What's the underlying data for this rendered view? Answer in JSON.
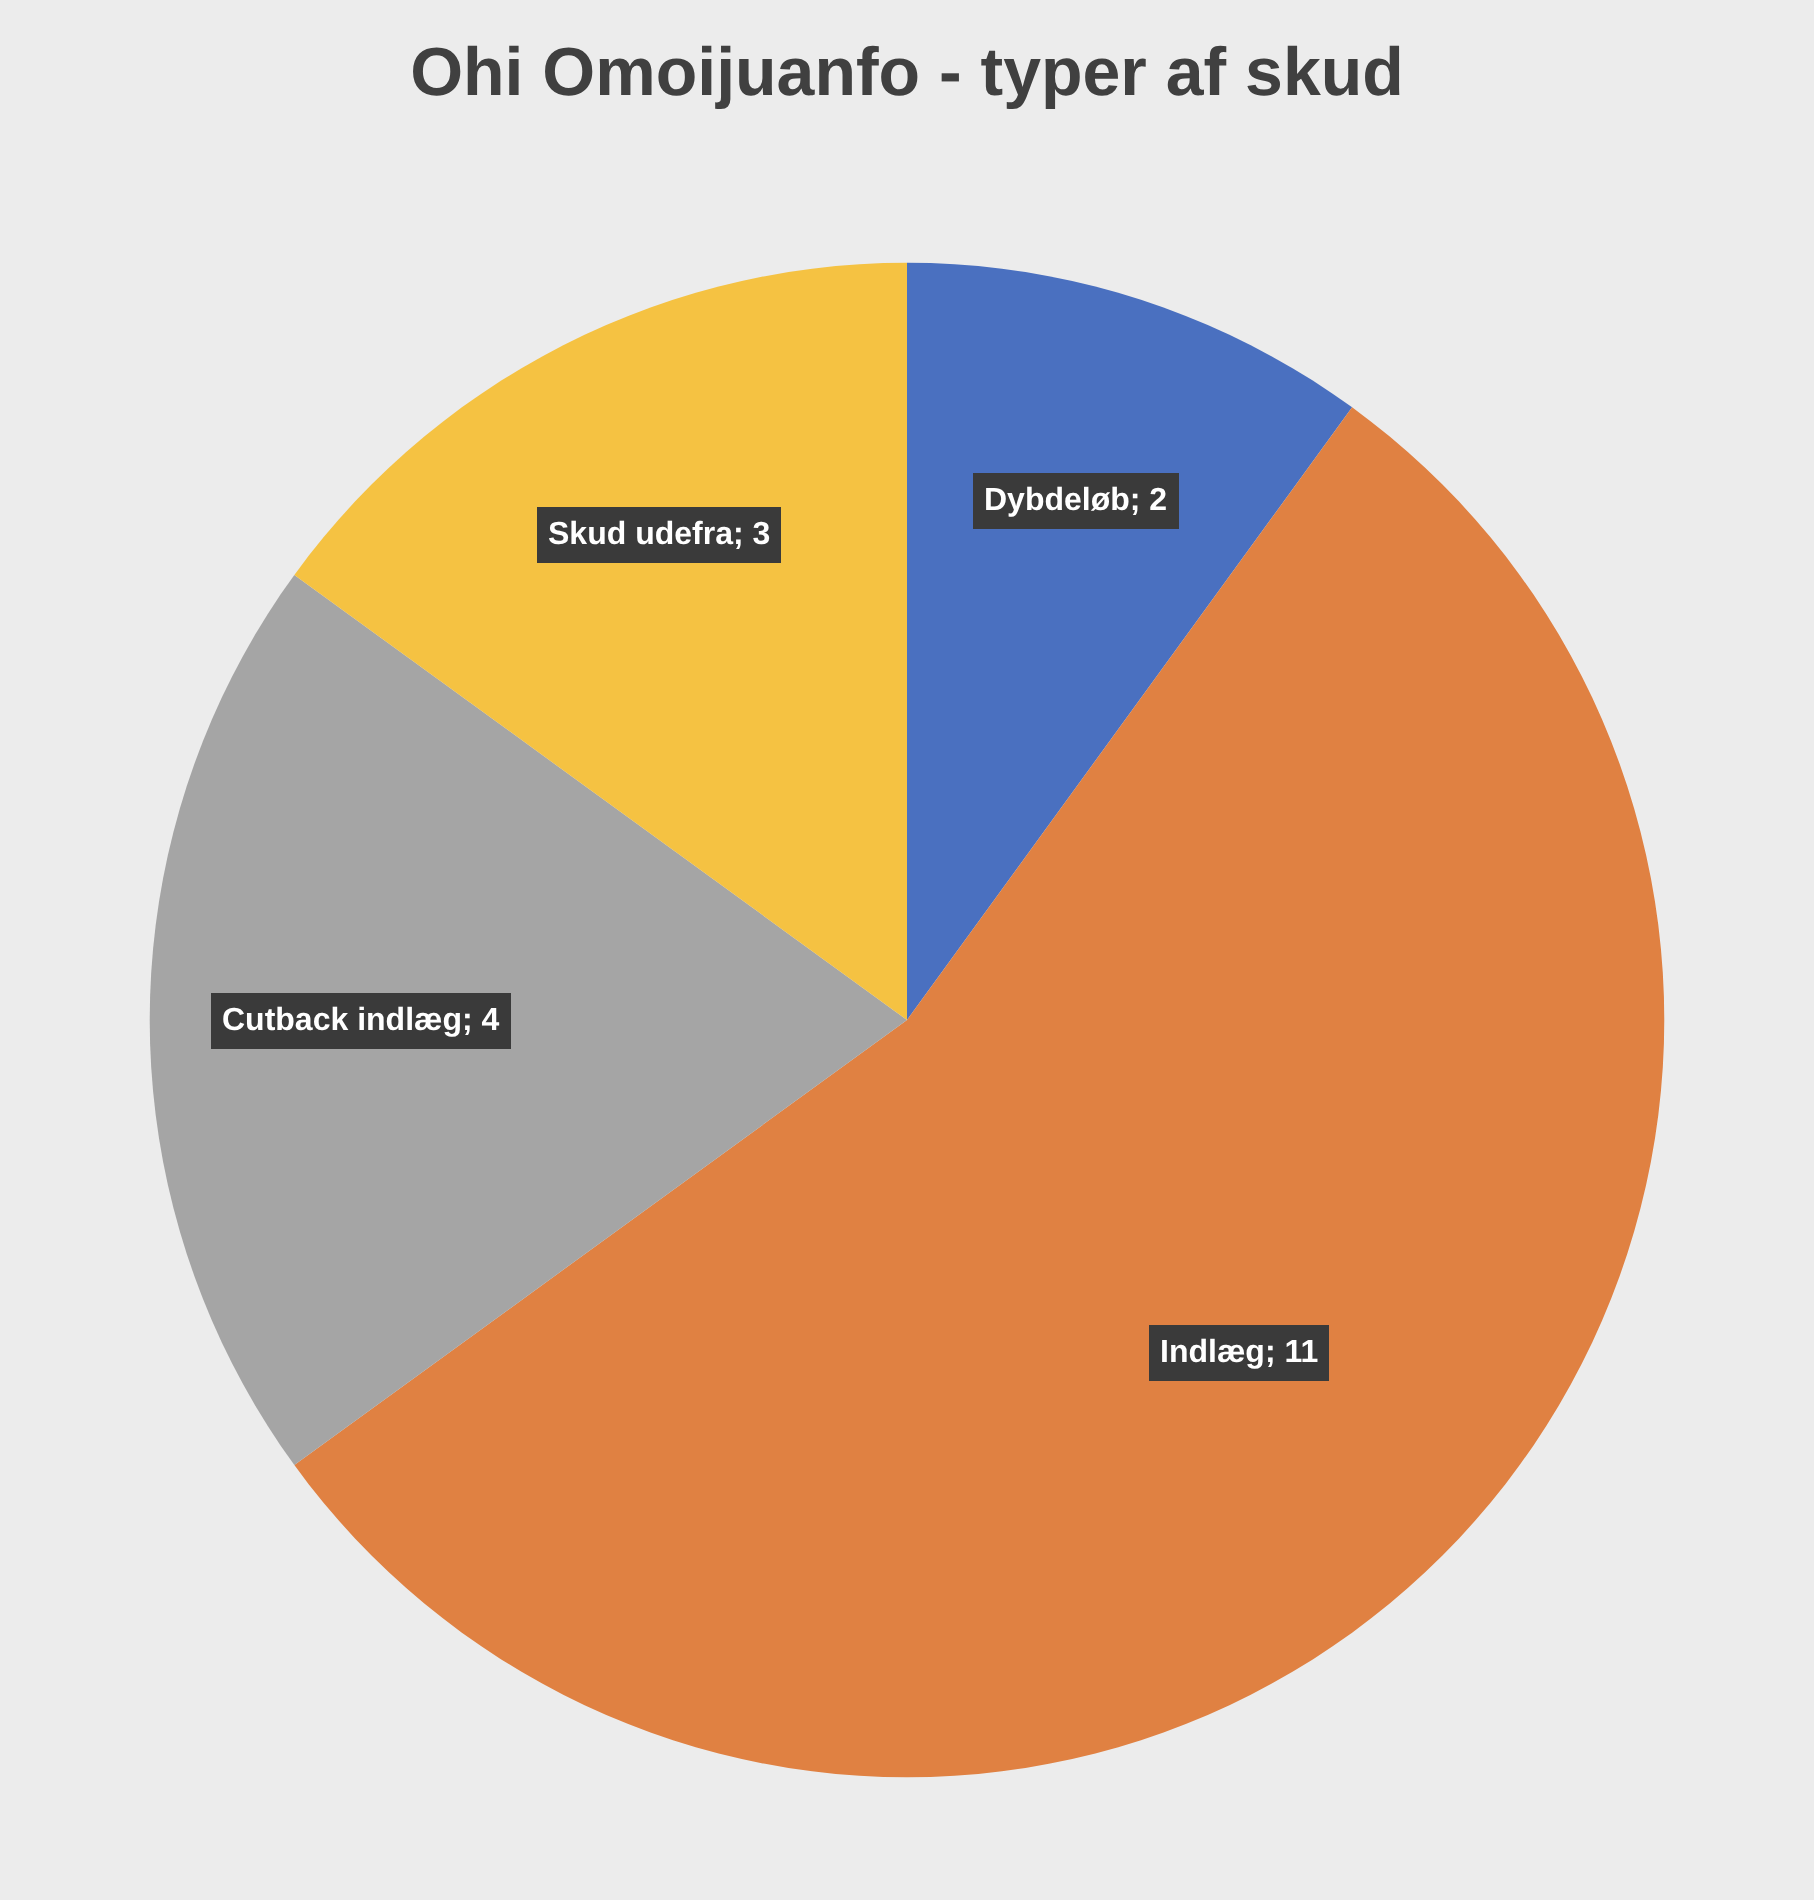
{
  "chart_data": {
    "type": "pie",
    "title": "Ohi Omoijuanfo - typer af skud",
    "categories": [
      "Dybdeløb; 2",
      "Indlæg; 11",
      "Cutback indlæg; 4",
      "Skud udefra; 3"
    ],
    "values": [
      2,
      11,
      4,
      3
    ],
    "colors": [
      "#4a70c0",
      "#e08142",
      "#a5a5a5",
      "#f5c242"
    ],
    "legend": false
  }
}
